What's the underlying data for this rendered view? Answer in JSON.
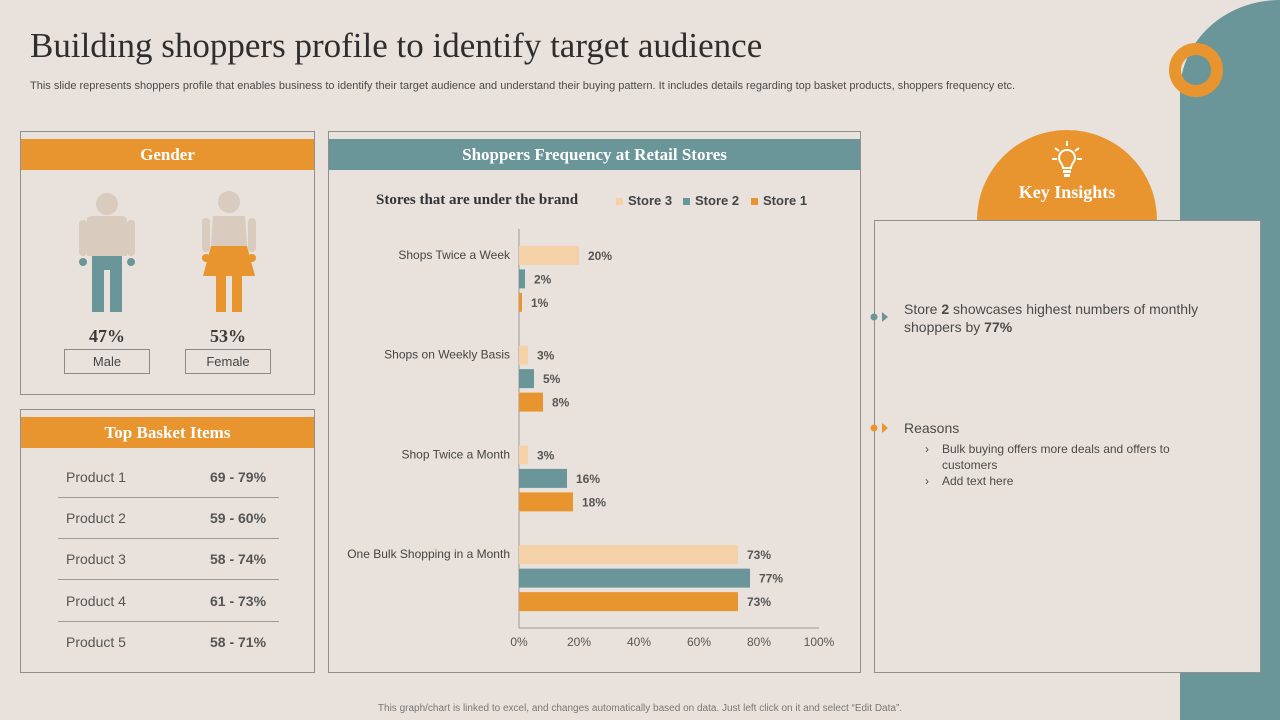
{
  "title": "Building shoppers profile to identify target audience",
  "subtitle": "This slide represents shoppers profile that enables business to identify their target audience and understand their buying pattern. It includes details regarding top basket products, shoppers frequency etc.",
  "footer": "This graph/chart is linked to excel, and changes automatically based on data. Just left click on it and select “Edit Data”.",
  "colors": {
    "orange": "#e8952f",
    "teal": "#6a9599",
    "peach": "#f4d1a6",
    "background": "#e9e2dc"
  },
  "gender": {
    "header": "Gender",
    "male": {
      "percent": "47%",
      "label": "Male",
      "icon": "male-person-icon"
    },
    "female": {
      "percent": "53%",
      "label": "Female",
      "icon": "female-person-icon"
    }
  },
  "basket": {
    "header": "Top Basket Items",
    "items": [
      {
        "product": "Product 1",
        "range": "69 - 79%"
      },
      {
        "product": "Product 2",
        "range": "59 - 60%"
      },
      {
        "product": "Product 3",
        "range": "58 - 74%"
      },
      {
        "product": "Product 4",
        "range": "61 - 73%"
      },
      {
        "product": "Product 5",
        "range": "58 - 71%"
      }
    ]
  },
  "frequency": {
    "header": "Shoppers Frequency at Retail Stores",
    "subtitle": "Stores that are under the brand"
  },
  "chart_data": {
    "type": "bar",
    "orientation": "horizontal",
    "categories": [
      "Shops Twice a Week",
      "Shops on Weekly Basis",
      "Shop Twice a Month",
      "One Bulk Shopping in a Month"
    ],
    "series": [
      {
        "name": "Store 3",
        "color": "#f4d1a6",
        "values": [
          20,
          3,
          3,
          73
        ]
      },
      {
        "name": "Store 2",
        "color": "#6a9599",
        "values": [
          2,
          5,
          16,
          77
        ]
      },
      {
        "name": "Store 1",
        "color": "#e8952f",
        "values": [
          1,
          8,
          18,
          73
        ]
      }
    ],
    "legend": [
      "Store 3",
      "Store 2",
      "Store 1"
    ],
    "xlim": [
      0,
      100
    ],
    "xticks": [
      "0%",
      "20%",
      "40%",
      "60%",
      "80%",
      "100%"
    ],
    "value_suffix": "%"
  },
  "insights": {
    "header": "Key Insights",
    "icon": "lightbulb-icon",
    "point1": {
      "pre": "Store ",
      "bold1": "2",
      "mid": " showcases highest numbers of monthly shoppers by ",
      "bold2": "77%"
    },
    "reasons_title": "Reasons",
    "reasons": [
      "Bulk buying offers  more deals and offers to customers",
      "Add text here"
    ]
  }
}
